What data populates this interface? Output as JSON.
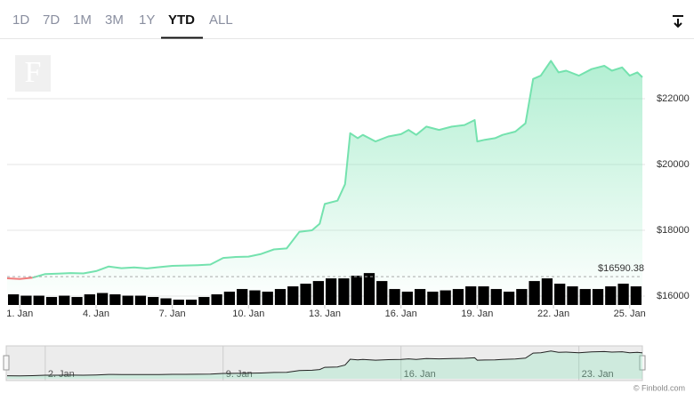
{
  "chart_data": {
    "type": "line",
    "logo": "F",
    "range_selector": {
      "buttons": [
        "1D",
        "7D",
        "1M",
        "3M",
        "1Y",
        "YTD",
        "ALL"
      ],
      "selected": 5
    },
    "xlim": [
      0.5,
      25.5
    ],
    "xticks": [
      {
        "value": 1,
        "label": "1. Jan"
      },
      {
        "value": 4,
        "label": "4. Jan"
      },
      {
        "value": 7,
        "label": "7. Jan"
      },
      {
        "value": 10,
        "label": "10. Jan"
      },
      {
        "value": 13,
        "label": "13. Jan"
      },
      {
        "value": 16,
        "label": "16. Jan"
      },
      {
        "value": 19,
        "label": "19. Jan"
      },
      {
        "value": 22,
        "label": "22. Jan"
      },
      {
        "value": 25,
        "label": "25. Jan"
      }
    ],
    "ylim": [
      15730,
      23810
    ],
    "yticks": [
      {
        "value": 16000,
        "label": "$16000"
      },
      {
        "value": 18000,
        "label": "$18000"
      },
      {
        "value": 20000,
        "label": "$20000"
      },
      {
        "value": 22000,
        "label": "$22000"
      }
    ],
    "y2lim": [
      0,
      100
    ],
    "grid": true,
    "price_marker": {
      "value": 16590.38,
      "label": "$16590.38"
    },
    "negative_color": "#f07b7b",
    "series": [
      {
        "color": "#74e2ae",
        "x": [
          0.5,
          1.0,
          1.5,
          2.0,
          2.5,
          3.0,
          3.5,
          4.0,
          4.5,
          5.0,
          5.5,
          6.0,
          6.5,
          7.0,
          7.5,
          8.0,
          8.5,
          9.0,
          9.5,
          10.0,
          10.5,
          11.0,
          11.5,
          12.0,
          12.5,
          12.8,
          13.0,
          13.5,
          13.8,
          14.0,
          14.3,
          14.5,
          15.0,
          15.5,
          16.0,
          16.3,
          16.6,
          17.0,
          17.5,
          18.0,
          18.5,
          18.9,
          19.0,
          19.3,
          19.7,
          20.0,
          20.5,
          20.9,
          21.2,
          21.5,
          21.9,
          22.2,
          22.5,
          23.0,
          23.5,
          24.0,
          24.3,
          24.7,
          25.0,
          25.3,
          25.5
        ],
        "values": [
          16540,
          16520,
          16560,
          16670,
          16680,
          16700,
          16690,
          16760,
          16900,
          16850,
          16870,
          16840,
          16880,
          16920,
          16930,
          16940,
          16960,
          17160,
          17190,
          17200,
          17280,
          17420,
          17450,
          17950,
          18000,
          18200,
          18800,
          18900,
          19400,
          20950,
          20800,
          20900,
          20700,
          20850,
          20920,
          21050,
          20900,
          21150,
          21050,
          21150,
          21200,
          21350,
          20700,
          20750,
          20800,
          20900,
          21000,
          21250,
          22600,
          22700,
          23150,
          22800,
          22850,
          22700,
          22900,
          23000,
          22850,
          22950,
          22700,
          22800,
          22650
        ]
      },
      {
        "color": "#000000",
        "axis": "y2",
        "x": [
          0.75,
          1.25,
          1.75,
          2.25,
          2.75,
          3.25,
          3.75,
          4.25,
          4.75,
          5.25,
          5.75,
          6.25,
          6.75,
          7.25,
          7.75,
          8.25,
          8.75,
          9.25,
          9.75,
          10.25,
          10.75,
          11.25,
          11.75,
          12.25,
          12.75,
          13.25,
          13.75,
          14.25,
          14.75,
          15.25,
          15.75,
          16.25,
          16.75,
          17.25,
          17.75,
          18.25,
          18.75,
          19.25,
          19.75,
          20.25,
          20.75,
          21.25,
          21.75,
          22.25,
          22.75,
          23.25,
          23.75,
          24.25,
          24.75,
          25.25
        ],
        "values": [
          4,
          3.5,
          3.5,
          3,
          3.5,
          3,
          4,
          4.5,
          4,
          3.5,
          3.5,
          3,
          2.5,
          2,
          2,
          3,
          4,
          5,
          6,
          5.5,
          5,
          6,
          7,
          8,
          9,
          10,
          10,
          11,
          12,
          9,
          6,
          5,
          6,
          5,
          5.5,
          6,
          7,
          7,
          6,
          5,
          6,
          9,
          10,
          8,
          7,
          6,
          6,
          7,
          8,
          7
        ]
      }
    ],
    "navigator_ticks": [
      {
        "value": 2,
        "label": "2. Jan"
      },
      {
        "value": 9,
        "label": "9. Jan"
      },
      {
        "value": 16,
        "label": "16. Jan"
      },
      {
        "value": 23,
        "label": "23. Jan"
      }
    ],
    "credits": "© Finbold.com"
  }
}
